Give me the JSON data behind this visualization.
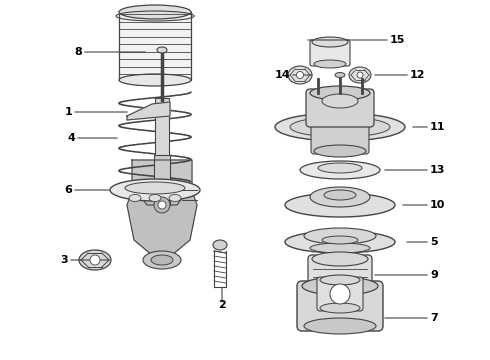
{
  "background_color": "#ffffff",
  "line_color": "#444444",
  "text_color": "#000000",
  "label_fontsize": 8.0,
  "fig_w": 4.9,
  "fig_h": 3.6,
  "dpi": 100
}
